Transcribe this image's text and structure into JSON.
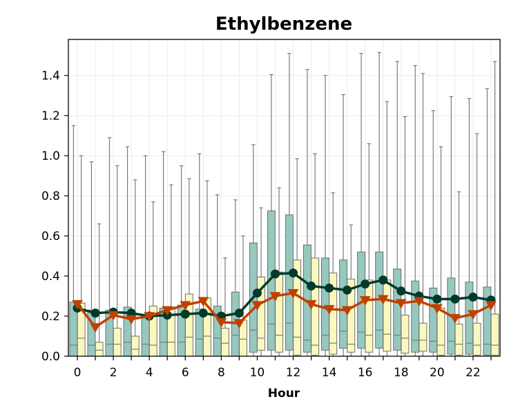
{
  "chart_data": {
    "type": "box",
    "title": "Ethylbenzene",
    "xlabel": "Hour",
    "ylabel": "",
    "ylim": [
      0,
      1.58
    ],
    "xticks": [
      "0",
      "2",
      "4",
      "6",
      "8",
      "10",
      "12",
      "14",
      "16",
      "18",
      "20",
      "22"
    ],
    "yticks": [
      "0.0",
      "0.2",
      "0.4",
      "0.6",
      "0.8",
      "1.0",
      "1.2",
      "1.4"
    ],
    "hours": [
      0,
      1,
      2,
      3,
      4,
      5,
      6,
      7,
      8,
      9,
      10,
      11,
      12,
      13,
      14,
      15,
      16,
      17,
      18,
      19,
      20,
      21,
      22,
      23
    ],
    "grid": true,
    "series": [
      {
        "color": "#96c8be",
        "line_color": "#003a2a",
        "marker": "circle",
        "boxes": [
          {
            "whisker_low": 0.0,
            "q1": 0.0,
            "median": 0.055,
            "q3": 0.27,
            "whisker_high": 1.15
          },
          {
            "whisker_low": 0.0,
            "q1": 0.0,
            "median": 0.055,
            "q3": 0.23,
            "whisker_high": 0.97
          },
          {
            "whisker_low": 0.0,
            "q1": 0.0,
            "median": 0.06,
            "q3": 0.23,
            "whisker_high": 1.09
          },
          {
            "whisker_low": 0.0,
            "q1": 0.0,
            "median": 0.07,
            "q3": 0.245,
            "whisker_high": 1.045
          },
          {
            "whisker_low": 0.0,
            "q1": 0.0,
            "median": 0.06,
            "q3": 0.2,
            "whisker_high": 1.0
          },
          {
            "whisker_low": 0.0,
            "q1": 0.0,
            "median": 0.07,
            "q3": 0.24,
            "whisker_high": 1.02
          },
          {
            "whisker_low": 0.0,
            "q1": 0.0,
            "median": 0.07,
            "q3": 0.255,
            "whisker_high": 0.95
          },
          {
            "whisker_low": 0.0,
            "q1": 0.0,
            "median": 0.085,
            "q3": 0.235,
            "whisker_high": 1.01
          },
          {
            "whisker_low": 0.0,
            "q1": 0.0,
            "median": 0.09,
            "q3": 0.25,
            "whisker_high": 0.805
          },
          {
            "whisker_low": 0.0,
            "q1": 0.0,
            "median": 0.105,
            "q3": 0.32,
            "whisker_high": 0.78
          },
          {
            "whisker_low": 0.0,
            "q1": 0.02,
            "median": 0.13,
            "q3": 0.565,
            "whisker_high": 1.055
          },
          {
            "whisker_low": 0.0,
            "q1": 0.03,
            "median": 0.16,
            "q3": 0.725,
            "whisker_high": 1.405
          },
          {
            "whisker_low": 0.0,
            "q1": 0.03,
            "median": 0.165,
            "q3": 0.705,
            "whisker_high": 1.51
          },
          {
            "whisker_low": 0.0,
            "q1": 0.02,
            "median": 0.08,
            "q3": 0.555,
            "whisker_high": 1.43
          },
          {
            "whisker_low": 0.0,
            "q1": 0.03,
            "median": 0.105,
            "q3": 0.49,
            "whisker_high": 1.4
          },
          {
            "whisker_low": 0.0,
            "q1": 0.04,
            "median": 0.125,
            "q3": 0.48,
            "whisker_high": 1.305
          },
          {
            "whisker_low": 0.0,
            "q1": 0.04,
            "median": 0.12,
            "q3": 0.52,
            "whisker_high": 1.51
          },
          {
            "whisker_low": 0.0,
            "q1": 0.04,
            "median": 0.13,
            "q3": 0.52,
            "whisker_high": 1.515
          },
          {
            "whisker_low": 0.0,
            "q1": 0.03,
            "median": 0.105,
            "q3": 0.435,
            "whisker_high": 1.47
          },
          {
            "whisker_low": 0.0,
            "q1": 0.02,
            "median": 0.08,
            "q3": 0.375,
            "whisker_high": 1.45
          },
          {
            "whisker_low": 0.0,
            "q1": 0.02,
            "median": 0.075,
            "q3": 0.34,
            "whisker_high": 1.225
          },
          {
            "whisker_low": 0.0,
            "q1": 0.01,
            "median": 0.075,
            "q3": 0.39,
            "whisker_high": 1.295
          },
          {
            "whisker_low": 0.0,
            "q1": 0.01,
            "median": 0.065,
            "q3": 0.37,
            "whisker_high": 1.285
          },
          {
            "whisker_low": 0.0,
            "q1": 0.005,
            "median": 0.06,
            "q3": 0.345,
            "whisker_high": 1.335
          }
        ],
        "mean_line": [
          0.24,
          0.215,
          0.22,
          0.215,
          0.2,
          0.205,
          0.21,
          0.215,
          0.2,
          0.215,
          0.315,
          0.41,
          0.415,
          0.35,
          0.34,
          0.33,
          0.36,
          0.38,
          0.325,
          0.3,
          0.285,
          0.285,
          0.295,
          0.28
        ]
      },
      {
        "color": "#fbf8be",
        "line_color": "#c04000",
        "marker": "triangle-down",
        "boxes": [
          {
            "whisker_low": 0.0,
            "q1": 0.0,
            "median": 0.09,
            "q3": 0.265,
            "whisker_high": 1.0
          },
          {
            "whisker_low": 0.0,
            "q1": 0.0,
            "median": 0.03,
            "q3": 0.07,
            "whisker_high": 0.66
          },
          {
            "whisker_low": 0.0,
            "q1": 0.0,
            "median": 0.06,
            "q3": 0.14,
            "whisker_high": 0.95
          },
          {
            "whisker_low": 0.0,
            "q1": 0.0,
            "median": 0.035,
            "q3": 0.1,
            "whisker_high": 0.88
          },
          {
            "whisker_low": 0.0,
            "q1": 0.0,
            "median": 0.055,
            "q3": 0.25,
            "whisker_high": 0.77
          },
          {
            "whisker_low": 0.0,
            "q1": 0.0,
            "median": 0.07,
            "q3": 0.245,
            "whisker_high": 0.855
          },
          {
            "whisker_low": 0.0,
            "q1": 0.0,
            "median": 0.095,
            "q3": 0.31,
            "whisker_high": 0.885
          },
          {
            "whisker_low": 0.0,
            "q1": 0.0,
            "median": 0.1,
            "q3": 0.29,
            "whisker_high": 0.875
          },
          {
            "whisker_low": 0.0,
            "q1": 0.0,
            "median": 0.065,
            "q3": 0.14,
            "whisker_high": 0.49
          },
          {
            "whisker_low": 0.0,
            "q1": 0.0,
            "median": 0.085,
            "q3": 0.18,
            "whisker_high": 0.6
          },
          {
            "whisker_low": 0.0,
            "q1": 0.03,
            "median": 0.09,
            "q3": 0.395,
            "whisker_high": 0.74
          },
          {
            "whisker_low": 0.0,
            "q1": 0.02,
            "median": 0.105,
            "q3": 0.42,
            "whisker_high": 0.84
          },
          {
            "whisker_low": 0.0,
            "q1": 0.005,
            "median": 0.095,
            "q3": 0.48,
            "whisker_high": 0.985
          },
          {
            "whisker_low": 0.0,
            "q1": 0.005,
            "median": 0.055,
            "q3": 0.49,
            "whisker_high": 1.01
          },
          {
            "whisker_low": 0.0,
            "q1": 0.01,
            "median": 0.065,
            "q3": 0.415,
            "whisker_high": 0.815
          },
          {
            "whisker_low": 0.0,
            "q1": 0.02,
            "median": 0.06,
            "q3": 0.385,
            "whisker_high": 0.655
          },
          {
            "whisker_low": 0.0,
            "q1": 0.02,
            "median": 0.105,
            "q3": 0.38,
            "whisker_high": 1.06
          },
          {
            "whisker_low": 0.0,
            "q1": 0.025,
            "median": 0.11,
            "q3": 0.38,
            "whisker_high": 1.27
          },
          {
            "whisker_low": 0.0,
            "q1": 0.015,
            "median": 0.09,
            "q3": 0.205,
            "whisker_high": 1.195
          },
          {
            "whisker_low": 0.0,
            "q1": 0.025,
            "median": 0.08,
            "q3": 0.165,
            "whisker_high": 1.41
          },
          {
            "whisker_low": 0.0,
            "q1": 0.005,
            "median": 0.055,
            "q3": 0.24,
            "whisker_high": 1.045
          },
          {
            "whisker_low": 0.0,
            "q1": 0.005,
            "median": 0.06,
            "q3": 0.16,
            "whisker_high": 0.82
          },
          {
            "whisker_low": 0.0,
            "q1": 0.005,
            "median": 0.055,
            "q3": 0.165,
            "whisker_high": 1.11
          },
          {
            "whisker_low": 0.0,
            "q1": 0.005,
            "median": 0.055,
            "q3": 0.21,
            "whisker_high": 1.47
          }
        ],
        "mean_line": [
          0.26,
          0.145,
          0.205,
          0.185,
          0.2,
          0.23,
          0.255,
          0.275,
          0.17,
          0.165,
          0.255,
          0.3,
          0.315,
          0.26,
          0.235,
          0.23,
          0.28,
          0.285,
          0.265,
          0.275,
          0.24,
          0.19,
          0.21,
          0.255
        ]
      }
    ]
  }
}
